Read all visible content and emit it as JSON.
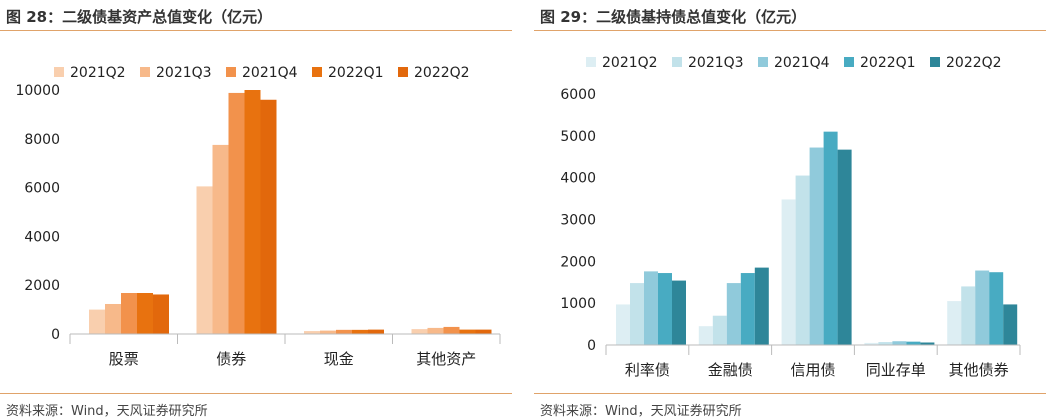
{
  "charts": [
    {
      "figure_title": "图 28：二级债基资产总值变化（亿元）",
      "source": "资料来源：Wind，天风证券研究所"
    },
    {
      "figure_title": "图 29：二级债基持债总值变化（亿元）",
      "source": "资料来源：Wind，天风证券研究所"
    }
  ],
  "chart_data": [
    {
      "type": "bar",
      "title": "图 28：二级债基资产总值变化（亿元）",
      "categories": [
        "股票",
        "债券",
        "现金",
        "其他资产"
      ],
      "ylim": [
        0,
        10000
      ],
      "yticks": [
        0,
        2000,
        4000,
        6000,
        8000,
        10000
      ],
      "legend_position": "top",
      "grid": false,
      "series": [
        {
          "name": "2021Q2",
          "color": "#f9cfae",
          "values": [
            1000,
            6050,
            120,
            200
          ]
        },
        {
          "name": "2021Q3",
          "color": "#f7b98a",
          "values": [
            1230,
            7750,
            140,
            250
          ]
        },
        {
          "name": "2021Q4",
          "color": "#f2924c",
          "values": [
            1680,
            9880,
            170,
            290
          ]
        },
        {
          "name": "2022Q1",
          "color": "#e8720f",
          "values": [
            1680,
            10000,
            170,
            180
          ]
        },
        {
          "name": "2022Q2",
          "color": "#e2680c",
          "values": [
            1620,
            9600,
            180,
            180
          ]
        }
      ]
    },
    {
      "type": "bar",
      "title": "图 29：二级债基持债总值变化（亿元）",
      "categories": [
        "利率债",
        "金融债",
        "信用债",
        "同业存单",
        "其他债券"
      ],
      "ylim": [
        0,
        6000
      ],
      "yticks": [
        0,
        1000,
        2000,
        3000,
        4000,
        5000,
        6000
      ],
      "legend_position": "top",
      "grid": false,
      "series": [
        {
          "name": "2021Q2",
          "color": "#ddeef3",
          "values": [
            970,
            450,
            3480,
            50,
            1050
          ]
        },
        {
          "name": "2021Q3",
          "color": "#c2e2ea",
          "values": [
            1480,
            700,
            4050,
            70,
            1400
          ]
        },
        {
          "name": "2021Q4",
          "color": "#90cadb",
          "values": [
            1760,
            1480,
            4720,
            90,
            1780
          ]
        },
        {
          "name": "2022Q1",
          "color": "#48abc2",
          "values": [
            1720,
            1720,
            5100,
            80,
            1740
          ]
        },
        {
          "name": "2022Q2",
          "color": "#2e8699",
          "values": [
            1540,
            1850,
            4670,
            60,
            970
          ]
        }
      ]
    }
  ]
}
